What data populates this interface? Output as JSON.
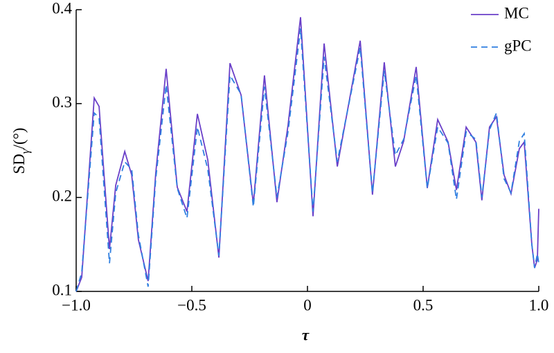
{
  "chart_data": {
    "type": "line",
    "xlabel": "τ",
    "ylabel": {
      "text": "SD",
      "subscript": "γ",
      "suffix": "/(°)"
    },
    "x": [
      -1.0,
      -0.976,
      -0.922,
      -0.901,
      -0.856,
      -0.829,
      -0.79,
      -0.76,
      -0.731,
      -0.689,
      -0.656,
      -0.611,
      -0.563,
      -0.521,
      -0.476,
      -0.431,
      -0.383,
      -0.335,
      -0.287,
      -0.234,
      -0.186,
      -0.132,
      -0.084,
      -0.03,
      0.024,
      0.072,
      0.129,
      0.228,
      0.281,
      0.332,
      0.38,
      0.416,
      0.47,
      0.518,
      0.563,
      0.608,
      0.644,
      0.686,
      0.728,
      0.754,
      0.787,
      0.817,
      0.85,
      0.88,
      0.916,
      0.937,
      0.97,
      0.982,
      0.994,
      1.0
    ],
    "series": [
      {
        "name": "MC",
        "color": "#6a3fc8",
        "dash": false,
        "values": [
          0.1,
          0.115,
          0.306,
          0.297,
          0.145,
          0.213,
          0.249,
          0.224,
          0.155,
          0.111,
          0.226,
          0.337,
          0.211,
          0.185,
          0.289,
          0.24,
          0.136,
          0.343,
          0.309,
          0.193,
          0.33,
          0.195,
          0.277,
          0.392,
          0.18,
          0.364,
          0.233,
          0.367,
          0.203,
          0.344,
          0.233,
          0.26,
          0.339,
          0.21,
          0.283,
          0.259,
          0.208,
          0.275,
          0.259,
          0.197,
          0.275,
          0.286,
          0.224,
          0.204,
          0.252,
          0.259,
          0.15,
          0.125,
          0.134,
          0.188
        ]
      },
      {
        "name": "gPC",
        "color": "#2f7fe0",
        "dash": true,
        "values": [
          0.1,
          0.12,
          0.29,
          0.285,
          0.13,
          0.205,
          0.238,
          0.23,
          0.16,
          0.105,
          0.22,
          0.32,
          0.21,
          0.178,
          0.275,
          0.23,
          0.138,
          0.33,
          0.31,
          0.19,
          0.318,
          0.2,
          0.27,
          0.38,
          0.185,
          0.35,
          0.238,
          0.36,
          0.205,
          0.335,
          0.245,
          0.262,
          0.33,
          0.21,
          0.275,
          0.258,
          0.198,
          0.27,
          0.262,
          0.2,
          0.272,
          0.29,
          0.22,
          0.205,
          0.26,
          0.268,
          0.15,
          0.125,
          0.14,
          0.13
        ]
      }
    ],
    "xlim": [
      -1,
      1
    ],
    "xticks": [
      {
        "value": -1,
        "label": "−1.0"
      },
      {
        "value": -0.5,
        "label": "−0.5"
      },
      0,
      0.5,
      {
        "value": 1,
        "label": "1.0"
      }
    ],
    "ylim": [
      0.1,
      0.4
    ],
    "yticks": [
      0.1,
      0.2,
      0.3,
      0.4
    ],
    "legend": "top-right"
  }
}
